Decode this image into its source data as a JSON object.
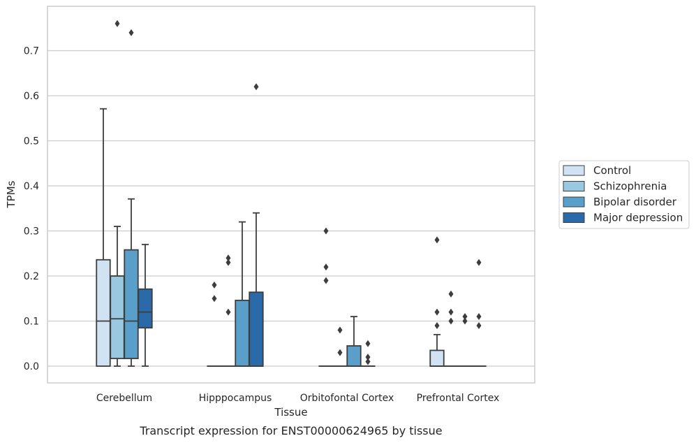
{
  "caption": "Transcript expression for ENST00000624965 by tissue",
  "chart_data": {
    "type": "box",
    "xlabel": "Tissue",
    "ylabel": "TPMs",
    "ylim": [
      -0.036,
      0.8
    ],
    "yticks": [
      "0.0",
      "0.1",
      "0.2",
      "0.3",
      "0.4",
      "0.5",
      "0.6",
      "0.7"
    ],
    "grid": "horizontal",
    "legend_position": "right",
    "categories": [
      "Cerebellum",
      "Hipppocampus",
      "Orbitofontal Cortex",
      "Prefrontal Cortex"
    ],
    "series": [
      {
        "name": "Control",
        "color": "#d1e2f2",
        "boxes": [
          {
            "q1": 0.0,
            "median": 0.1,
            "q3": 0.236,
            "whisker_low": 0.0,
            "whisker_high": 0.571,
            "outliers": []
          },
          {
            "q1": 0.0,
            "median": 0.0,
            "q3": 0.0,
            "whisker_low": 0.0,
            "whisker_high": 0.0,
            "outliers": [
              0.18,
              0.15
            ]
          },
          {
            "q1": 0.0,
            "median": 0.0,
            "q3": 0.0,
            "whisker_low": 0.0,
            "whisker_high": 0.0,
            "outliers": [
              0.3,
              0.22,
              0.19
            ]
          },
          {
            "q1": 0.0,
            "median": 0.0,
            "q3": 0.035,
            "whisker_low": 0.0,
            "whisker_high": 0.07,
            "outliers": [
              0.28,
              0.12,
              0.09
            ]
          }
        ]
      },
      {
        "name": "Schizophrenia",
        "color": "#9ac8e0",
        "boxes": [
          {
            "q1": 0.017,
            "median": 0.105,
            "q3": 0.2,
            "whisker_low": 0.0,
            "whisker_high": 0.31,
            "outliers": [
              0.76
            ]
          },
          {
            "q1": 0.0,
            "median": 0.0,
            "q3": 0.0,
            "whisker_low": 0.0,
            "whisker_high": 0.0,
            "outliers": [
              0.24,
              0.23,
              0.12
            ]
          },
          {
            "q1": 0.0,
            "median": 0.0,
            "q3": 0.0,
            "whisker_low": 0.0,
            "whisker_high": 0.0,
            "outliers": [
              0.08,
              0.03
            ]
          },
          {
            "q1": 0.0,
            "median": 0.0,
            "q3": 0.0,
            "whisker_low": 0.0,
            "whisker_high": 0.0,
            "outliers": [
              0.16,
              0.12,
              0.1
            ]
          }
        ]
      },
      {
        "name": "Bipolar disorder",
        "color": "#5a9fc9",
        "boxes": [
          {
            "q1": 0.017,
            "median": 0.1,
            "q3": 0.258,
            "whisker_low": 0.0,
            "whisker_high": 0.371,
            "outliers": [
              0.74
            ]
          },
          {
            "q1": 0.0,
            "median": 0.0,
            "q3": 0.146,
            "whisker_low": 0.0,
            "whisker_high": 0.32,
            "outliers": []
          },
          {
            "q1": 0.0,
            "median": 0.0,
            "q3": 0.045,
            "whisker_low": 0.0,
            "whisker_high": 0.11,
            "outliers": []
          },
          {
            "q1": 0.0,
            "median": 0.0,
            "q3": 0.0,
            "whisker_low": 0.0,
            "whisker_high": 0.0,
            "outliers": [
              0.11,
              0.1
            ]
          }
        ]
      },
      {
        "name": "Major depression",
        "color": "#2a6aa8",
        "boxes": [
          {
            "q1": 0.085,
            "median": 0.12,
            "q3": 0.171,
            "whisker_low": 0.0,
            "whisker_high": 0.27,
            "outliers": []
          },
          {
            "q1": 0.0,
            "median": 0.0,
            "q3": 0.164,
            "whisker_low": 0.0,
            "whisker_high": 0.34,
            "outliers": [
              0.62
            ]
          },
          {
            "q1": 0.0,
            "median": 0.0,
            "q3": 0.0,
            "whisker_low": 0.0,
            "whisker_high": 0.0,
            "outliers": [
              0.05,
              0.02,
              0.01
            ]
          },
          {
            "q1": 0.0,
            "median": 0.0,
            "q3": 0.0,
            "whisker_low": 0.0,
            "whisker_high": 0.0,
            "outliers": [
              0.23,
              0.11,
              0.09
            ]
          }
        ]
      }
    ]
  }
}
